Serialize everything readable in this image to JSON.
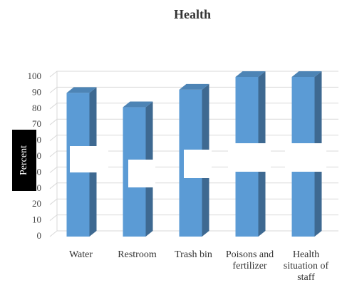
{
  "chart_data": {
    "type": "bar3d",
    "title": "Health",
    "y_label": "Percent",
    "categories": [
      "Water",
      "Restroom",
      "Trash bin",
      "Poisons and fertilizer",
      "Health situation of staff"
    ],
    "values": [
      90,
      81,
      92,
      100,
      100
    ],
    "color": "#5b9bd5",
    "ylim": [
      0,
      100
    ],
    "yticks": [
      0,
      10,
      20,
      30,
      40,
      50,
      60,
      70,
      80,
      90,
      100
    ],
    "grid": true
  }
}
